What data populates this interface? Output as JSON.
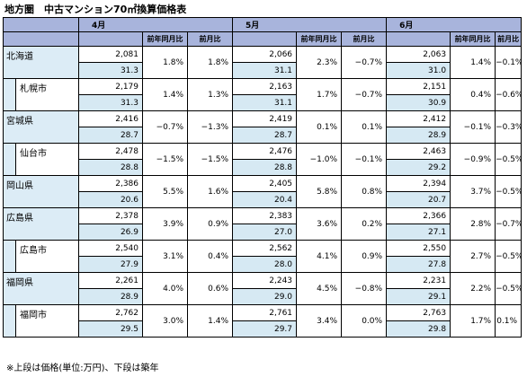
{
  "title": "地方圏　中古マンション70㎡換算価格表",
  "footnote": "※上段は価格(単位:万円)、下段は築年",
  "months": [
    "4月",
    "5月",
    "6月"
  ],
  "col_yoy": "前年同月比",
  "col_mom": "前月比",
  "rows": [
    {
      "name": "北海道",
      "sub": false,
      "cells": [
        {
          "price": "2,081",
          "age": "31.3",
          "yoy": "1.8%",
          "mom": "1.8%"
        },
        {
          "price": "2,066",
          "age": "31.1",
          "yoy": "2.3%",
          "mom": "−0.7%"
        },
        {
          "price": "2,063",
          "age": "31.0",
          "yoy": "1.4%",
          "mom": "−0.1%"
        }
      ]
    },
    {
      "name": "札幌市",
      "sub": true,
      "cells": [
        {
          "price": "2,179",
          "age": "31.3",
          "yoy": "1.4%",
          "mom": "1.3%"
        },
        {
          "price": "2,163",
          "age": "31.1",
          "yoy": "1.7%",
          "mom": "−0.7%"
        },
        {
          "price": "2,151",
          "age": "30.9",
          "yoy": "0.4%",
          "mom": "−0.6%"
        }
      ]
    },
    {
      "name": "宮城県",
      "sub": false,
      "cells": [
        {
          "price": "2,416",
          "age": "28.7",
          "yoy": "−0.7%",
          "mom": "−1.3%"
        },
        {
          "price": "2,419",
          "age": "28.7",
          "yoy": "0.1%",
          "mom": "0.1%"
        },
        {
          "price": "2,412",
          "age": "28.9",
          "yoy": "−0.1%",
          "mom": "−0.3%"
        }
      ]
    },
    {
      "name": "仙台市",
      "sub": true,
      "cells": [
        {
          "price": "2,478",
          "age": "28.8",
          "yoy": "−1.5%",
          "mom": "−1.5%"
        },
        {
          "price": "2,476",
          "age": "28.8",
          "yoy": "−1.0%",
          "mom": "−0.1%"
        },
        {
          "price": "2,463",
          "age": "29.2",
          "yoy": "−0.9%",
          "mom": "−0.5%"
        }
      ]
    },
    {
      "name": "岡山県",
      "sub": false,
      "cells": [
        {
          "price": "2,386",
          "age": "20.6",
          "yoy": "5.5%",
          "mom": "1.6%"
        },
        {
          "price": "2,405",
          "age": "20.4",
          "yoy": "5.8%",
          "mom": "0.8%"
        },
        {
          "price": "2,394",
          "age": "20.7",
          "yoy": "3.7%",
          "mom": "−0.5%"
        }
      ]
    },
    {
      "name": "広島県",
      "sub": false,
      "cells": [
        {
          "price": "2,378",
          "age": "26.9",
          "yoy": "3.9%",
          "mom": "0.9%"
        },
        {
          "price": "2,383",
          "age": "27.0",
          "yoy": "3.6%",
          "mom": "0.2%"
        },
        {
          "price": "2,366",
          "age": "27.1",
          "yoy": "2.8%",
          "mom": "−0.7%"
        }
      ]
    },
    {
      "name": "広島市",
      "sub": true,
      "cells": [
        {
          "price": "2,540",
          "age": "27.9",
          "yoy": "3.1%",
          "mom": "0.4%"
        },
        {
          "price": "2,562",
          "age": "28.0",
          "yoy": "4.1%",
          "mom": "0.9%"
        },
        {
          "price": "2,550",
          "age": "27.8",
          "yoy": "2.7%",
          "mom": "−0.5%"
        }
      ]
    },
    {
      "name": "福岡県",
      "sub": false,
      "cells": [
        {
          "price": "2,261",
          "age": "28.9",
          "yoy": "4.0%",
          "mom": "0.6%"
        },
        {
          "price": "2,243",
          "age": "29.0",
          "yoy": "4.5%",
          "mom": "−0.8%"
        },
        {
          "price": "2,231",
          "age": "29.1",
          "yoy": "2.2%",
          "mom": "−0.5%"
        }
      ]
    },
    {
      "name": "福岡市",
      "sub": true,
      "cells": [
        {
          "price": "2,762",
          "age": "29.5",
          "yoy": "3.0%",
          "mom": "1.4%"
        },
        {
          "price": "2,761",
          "age": "29.7",
          "yoy": "3.4%",
          "mom": "0.0%"
        },
        {
          "price": "2,763",
          "age": "29.8",
          "yoy": "1.7%",
          "mom": "0.1%"
        }
      ]
    }
  ]
}
